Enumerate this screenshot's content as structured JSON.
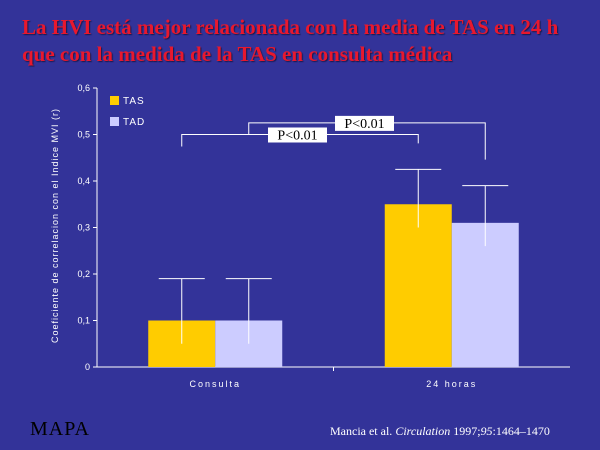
{
  "title": "La HVI está mejor relacionada con la media de TAS en 24 h que con la medida de la TAS en consulta médica",
  "footer_label": "MAPA",
  "citation": {
    "authors": "Mancia et al. ",
    "journal": "Circulation",
    "year_volume": " 1997;",
    "volume": "95",
    "pages": ":1464–1470"
  },
  "colors": {
    "background": "#333399",
    "title": "#e8182e",
    "tas": "#ffcc00",
    "tad": "#ccccff"
  },
  "chart_data": {
    "type": "bar",
    "ylabel": "Coeficiente de correlacion con el  Indice MVI (r)",
    "xlabel": "",
    "ylim": [
      0,
      0.6
    ],
    "yticks": [
      "0",
      "0,1",
      "0,2",
      "0,3",
      "0,4",
      "0,5",
      "0,6"
    ],
    "categories": [
      "Consulta",
      "24 horas"
    ],
    "series": [
      {
        "name": "TAS",
        "color": "#ffcc00",
        "values": [
          0.1,
          0.35
        ],
        "error_upper": [
          0.19,
          0.425
        ],
        "error_lower": [
          0.05,
          0.3
        ]
      },
      {
        "name": "TAD",
        "color": "#ccccff",
        "values": [
          0.1,
          0.31
        ],
        "error_upper": [
          0.19,
          0.39
        ],
        "error_lower": [
          0.05,
          0.26
        ]
      }
    ],
    "legend_position": "top-left",
    "annotations": [
      {
        "text": "P<0.01",
        "series": "TAS",
        "comparison": [
          "Consulta",
          "24 horas"
        ]
      },
      {
        "text": "P<0.01",
        "series": "TAD",
        "comparison": [
          "Consulta",
          "24 horas"
        ]
      }
    ]
  }
}
